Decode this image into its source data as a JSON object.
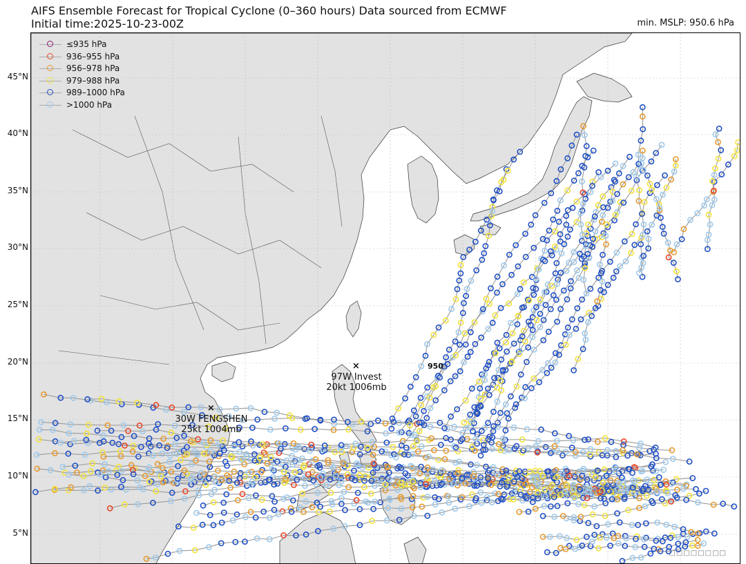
{
  "header": {
    "title_line1": "AIFS Ensemble Forecast for Tropical Cyclone (0–360 hours) Data sourced from ECMWF",
    "title_line2": "Initial time:2025-10-23-00Z",
    "min_mslp": "min. MSLP: 950.6 hPa"
  },
  "latitude_labels": [
    "45°N",
    "40°N",
    "35°N",
    "30°N",
    "25°N",
    "20°N",
    "15°N",
    "10°N",
    "5°N"
  ],
  "legend": [
    {
      "label": "≤935 hPa",
      "color": "#8b1a6b"
    },
    {
      "label": "936–955 hPa",
      "color": "#e8472b"
    },
    {
      "label": "956–978 hPa",
      "color": "#e59a2f"
    },
    {
      "label": "979–988 hPa",
      "color": "#f2e23a"
    },
    {
      "label": "989–1000 hPa",
      "color": "#1f4fc6"
    },
    {
      "label": ">1000 hPa",
      "color": "#9ec9ec"
    }
  ],
  "storms": [
    {
      "name": "97W Invest",
      "detail": "20kt 1006mb"
    },
    {
      "name": "30W FENGSHEN",
      "detail": "25kt 1004mb"
    }
  ],
  "min_value_label": "950",
  "watermark": "□□□□□□□□",
  "colors": {
    "land": "#e2e2e2",
    "ocean": "#ffffff",
    "grid": "#bbbbbb",
    "track_line": "#999999"
  }
}
